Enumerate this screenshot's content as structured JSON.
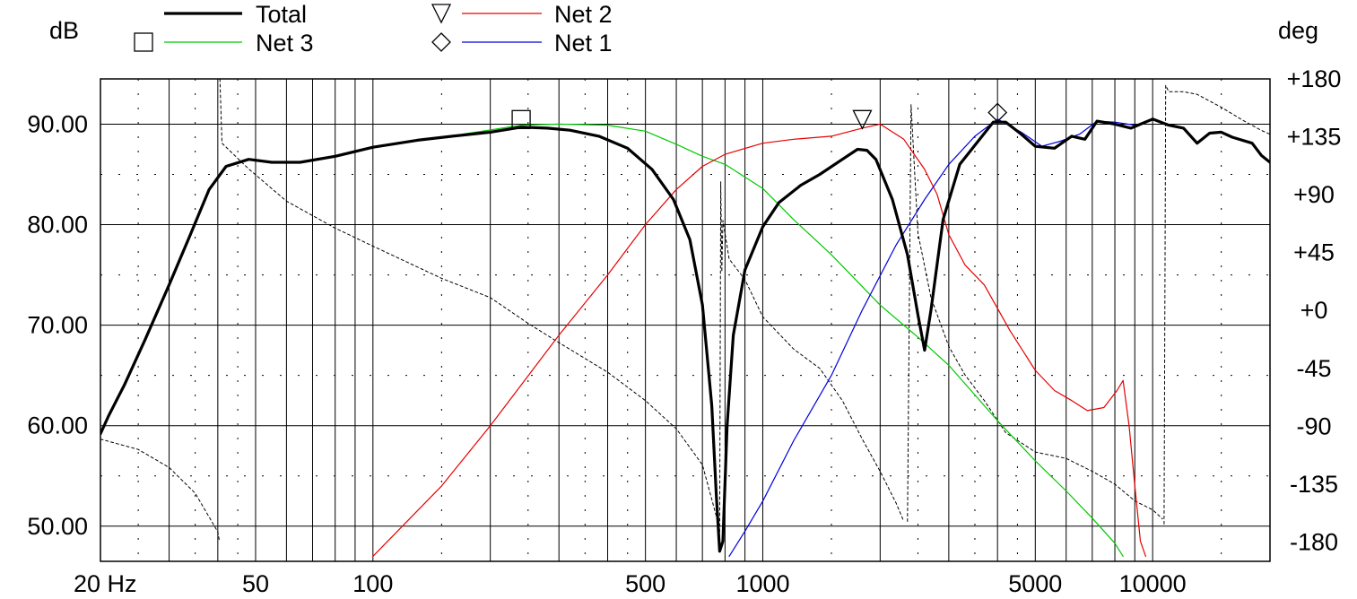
{
  "chart_data": {
    "type": "line",
    "x_scale": "log",
    "xlim": [
      20,
      20000
    ],
    "ylim": [
      46.5,
      94.5
    ],
    "y2lim": [
      -195,
      180
    ],
    "ylabel": "dB",
    "y2label": "deg",
    "xticks": [
      {
        "value": 20,
        "label": "20 Hz"
      },
      {
        "value": 50,
        "label": "50"
      },
      {
        "value": 100,
        "label": "100"
      },
      {
        "value": 500,
        "label": "500"
      },
      {
        "value": 1000,
        "label": "1000"
      },
      {
        "value": 5000,
        "label": "5000"
      },
      {
        "value": 10000,
        "label": "10000"
      }
    ],
    "yticks": [
      {
        "value": 90,
        "label": "90.00"
      },
      {
        "value": 80,
        "label": "80.00"
      },
      {
        "value": 70,
        "label": "70.00"
      },
      {
        "value": 60,
        "label": "60.00"
      },
      {
        "value": 50,
        "label": "50.00"
      }
    ],
    "y2ticks": [
      {
        "value": 180,
        "label": "+180"
      },
      {
        "value": 135,
        "label": "+135"
      },
      {
        "value": 90,
        "label": "+90"
      },
      {
        "value": 45,
        "label": "+45"
      },
      {
        "value": 0,
        "label": "+0"
      },
      {
        "value": -45,
        "label": "-45"
      },
      {
        "value": -90,
        "label": "-90"
      },
      {
        "value": -135,
        "label": "-135"
      },
      {
        "value": -180,
        "label": "-180"
      }
    ],
    "grid": true,
    "legend_position": "top",
    "series": [
      {
        "name": "Total",
        "color": "#000000",
        "width": 3.2,
        "axis": "left",
        "marker": "",
        "points": [
          [
            20,
            59.2
          ],
          [
            21,
            61
          ],
          [
            23,
            64
          ],
          [
            26,
            68.5
          ],
          [
            30,
            74
          ],
          [
            34,
            79
          ],
          [
            38,
            83.5
          ],
          [
            42,
            85.8
          ],
          [
            48,
            86.5
          ],
          [
            55,
            86.2
          ],
          [
            65,
            86.2
          ],
          [
            80,
            86.8
          ],
          [
            100,
            87.7
          ],
          [
            130,
            88.4
          ],
          [
            160,
            88.8
          ],
          [
            200,
            89.2
          ],
          [
            240,
            89.7
          ],
          [
            280,
            89.6
          ],
          [
            320,
            89.4
          ],
          [
            380,
            88.8
          ],
          [
            450,
            87.6
          ],
          [
            520,
            85.5
          ],
          [
            590,
            82.5
          ],
          [
            650,
            78.5
          ],
          [
            700,
            72
          ],
          [
            740,
            62
          ],
          [
            760,
            53
          ],
          [
            775,
            47.5
          ],
          [
            790,
            48.5
          ],
          [
            810,
            60
          ],
          [
            840,
            69
          ],
          [
            900,
            75.5
          ],
          [
            1000,
            79.8
          ],
          [
            1100,
            82.2
          ],
          [
            1250,
            83.9
          ],
          [
            1400,
            85
          ],
          [
            1600,
            86.5
          ],
          [
            1750,
            87.5
          ],
          [
            1850,
            87.4
          ],
          [
            1950,
            86.5
          ],
          [
            2150,
            82.5
          ],
          [
            2350,
            77
          ],
          [
            2500,
            71
          ],
          [
            2600,
            67.5
          ],
          [
            2700,
            71.5
          ],
          [
            2900,
            80.5
          ],
          [
            3200,
            86
          ],
          [
            3600,
            88.5
          ],
          [
            3900,
            90.2
          ],
          [
            4200,
            90.2
          ],
          [
            4600,
            89
          ],
          [
            5000,
            87.8
          ],
          [
            5600,
            87.6
          ],
          [
            6200,
            88.8
          ],
          [
            6700,
            88.5
          ],
          [
            7200,
            90.3
          ],
          [
            8000,
            90
          ],
          [
            8800,
            89.6
          ],
          [
            10000,
            90.5
          ],
          [
            11000,
            89.9
          ],
          [
            12000,
            89.6
          ],
          [
            13000,
            88.1
          ],
          [
            14000,
            89.1
          ],
          [
            15000,
            89.2
          ],
          [
            16000,
            88.7
          ],
          [
            18000,
            88.1
          ],
          [
            19000,
            86.9
          ],
          [
            20000,
            86.2
          ]
        ]
      },
      {
        "name": "Net 3",
        "color": "#00c800",
        "width": 1.2,
        "axis": "left",
        "marker": "square",
        "points": [
          [
            170,
            89
          ],
          [
            240,
            89.9
          ],
          [
            300,
            90
          ],
          [
            400,
            89.9
          ],
          [
            500,
            89.3
          ],
          [
            600,
            88
          ],
          [
            700,
            86.8
          ],
          [
            800,
            86
          ],
          [
            1000,
            83.6
          ],
          [
            1200,
            80.5
          ],
          [
            1500,
            77
          ],
          [
            2000,
            72
          ],
          [
            2500,
            68.8
          ],
          [
            3000,
            66
          ],
          [
            4000,
            60.5
          ],
          [
            5000,
            56.5
          ],
          [
            6000,
            53.5
          ],
          [
            7000,
            50.8
          ],
          [
            8000,
            48.3
          ],
          [
            8400,
            47
          ]
        ],
        "marker_at": [
          240,
          90.1
        ]
      },
      {
        "name": "Net 2",
        "color": "#e60000",
        "width": 1.2,
        "axis": "left",
        "marker": "triangle-down",
        "points": [
          [
            100,
            47
          ],
          [
            150,
            54
          ],
          [
            200,
            60
          ],
          [
            300,
            69
          ],
          [
            400,
            75
          ],
          [
            500,
            80
          ],
          [
            600,
            83.5
          ],
          [
            700,
            85.8
          ],
          [
            800,
            87
          ],
          [
            1000,
            88.1
          ],
          [
            1200,
            88.5
          ],
          [
            1500,
            88.8
          ],
          [
            1800,
            89.6
          ],
          [
            2000,
            90
          ],
          [
            2300,
            88.5
          ],
          [
            2600,
            85.5
          ],
          [
            2800,
            83
          ],
          [
            3000,
            79
          ],
          [
            3300,
            76
          ],
          [
            3700,
            74
          ],
          [
            4300,
            69.5
          ],
          [
            5000,
            65.5
          ],
          [
            5600,
            63.5
          ],
          [
            6200,
            62.5
          ],
          [
            6800,
            61.5
          ],
          [
            7500,
            61.8
          ],
          [
            8100,
            63.5
          ],
          [
            8400,
            64.5
          ],
          [
            8700,
            60
          ],
          [
            9000,
            54
          ],
          [
            9300,
            48.5
          ],
          [
            9600,
            47
          ]
        ],
        "marker_at": [
          1800,
          90.1
        ]
      },
      {
        "name": "Net 1",
        "color": "#0000dc",
        "width": 1.2,
        "axis": "left",
        "marker": "diamond",
        "points": [
          [
            820,
            47
          ],
          [
            900,
            49.5
          ],
          [
            1000,
            52.5
          ],
          [
            1200,
            58.5
          ],
          [
            1500,
            65
          ],
          [
            1800,
            71.5
          ],
          [
            2200,
            78
          ],
          [
            2600,
            82.5
          ],
          [
            3000,
            86
          ],
          [
            3500,
            88.8
          ],
          [
            4000,
            90.5
          ],
          [
            4600,
            89.2
          ],
          [
            5200,
            87.8
          ],
          [
            5800,
            88.3
          ],
          [
            6500,
            89
          ],
          [
            7200,
            90.3
          ],
          [
            8000,
            90.2
          ],
          [
            9000,
            89.9
          ],
          [
            10000,
            90.4
          ]
        ],
        "marker_at": [
          4000,
          90.8
        ]
      },
      {
        "name": "",
        "color": "#000000",
        "width": 1,
        "dash": "3 3",
        "axis": "right",
        "segments": [
          [
            [
              20,
              -100
            ],
            [
              25,
              -108
            ],
            [
              30,
              -122
            ],
            [
              35,
              -142
            ],
            [
              40,
              -172
            ],
            [
              40.3,
              -178
            ]
          ],
          [
            [
              40.5,
              180
            ],
            [
              41,
              130
            ],
            [
              48,
              110
            ],
            [
              60,
              85
            ],
            [
              80,
              64
            ],
            [
              100,
              50
            ],
            [
              150,
              25
            ],
            [
              200,
              10
            ],
            [
              250,
              -10
            ],
            [
              300,
              -25
            ],
            [
              400,
              -48
            ],
            [
              500,
              -70
            ],
            [
              600,
              -92
            ],
            [
              700,
              -120
            ],
            [
              760,
              -160
            ]
          ],
          [
            [
              775,
              -172
            ],
            [
              780,
              100
            ],
            [
              785,
              30
            ],
            [
              790,
              70
            ],
            [
              820,
              40
            ],
            [
              900,
              24
            ],
            [
              1000,
              -5
            ],
            [
              1200,
              -30
            ],
            [
              1400,
              -45
            ],
            [
              1600,
              -70
            ],
            [
              1800,
              -100
            ],
            [
              2000,
              -125
            ],
            [
              2200,
              -150
            ],
            [
              2300,
              -164
            ]
          ],
          [
            [
              2350,
              -164
            ],
            [
              2400,
              160
            ],
            [
              2450,
              110
            ],
            [
              2500,
              60
            ],
            [
              2700,
              10
            ],
            [
              3000,
              -28
            ],
            [
              3300,
              -50
            ],
            [
              3700,
              -70
            ],
            [
              4200,
              -95
            ],
            [
              5000,
              -110
            ],
            [
              6000,
              -115
            ],
            [
              7000,
              -125
            ],
            [
              8000,
              -135
            ],
            [
              9000,
              -148
            ],
            [
              10000,
              -155
            ],
            [
              10600,
              -162
            ]
          ],
          [
            [
              10700,
              -166
            ],
            [
              10800,
              175
            ],
            [
              11000,
              170
            ],
            [
              12000,
              170
            ],
            [
              13000,
              168
            ],
            [
              15000,
              158
            ],
            [
              17000,
              148
            ],
            [
              19000,
              140
            ],
            [
              20000,
              137
            ]
          ]
        ]
      }
    ]
  }
}
